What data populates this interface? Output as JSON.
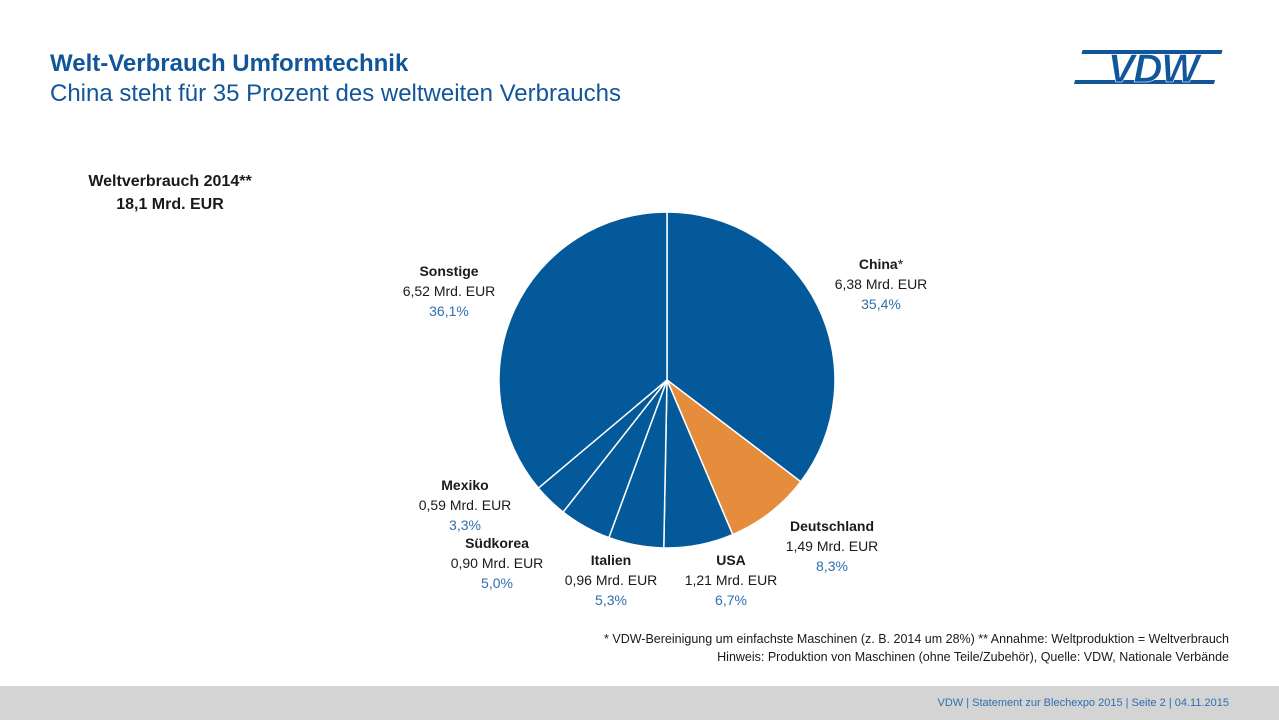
{
  "header": {
    "title": "Welt-Verbrauch Umformtechnik",
    "subtitle": "China steht für 35 Prozent des weltweiten Verbrauchs",
    "logo_text": "VDW"
  },
  "total": {
    "line1": "Weltverbrauch 2014**",
    "line2": "18,1 Mrd. EUR"
  },
  "chart_data": {
    "type": "pie",
    "start_angle_deg": 0,
    "direction": "clockwise",
    "slices": [
      {
        "name": "China",
        "name_suffix": "*",
        "value": 6.38,
        "value_label": "6,38 Mrd. EUR",
        "percent": 35.4,
        "percent_label": "35,4%",
        "color": "#04599a"
      },
      {
        "name": "Deutschland",
        "name_suffix": "",
        "value": 1.49,
        "value_label": "1,49 Mrd. EUR",
        "percent": 8.3,
        "percent_label": "8,3%",
        "color": "#e68c3d"
      },
      {
        "name": "USA",
        "name_suffix": "",
        "value": 1.21,
        "value_label": "1,21 Mrd. EUR",
        "percent": 6.7,
        "percent_label": "6,7%",
        "color": "#04599a"
      },
      {
        "name": "Italien",
        "name_suffix": "",
        "value": 0.96,
        "value_label": "0,96 Mrd. EUR",
        "percent": 5.3,
        "percent_label": "5,3%",
        "color": "#04599a"
      },
      {
        "name": "Südkorea",
        "name_suffix": "",
        "value": 0.9,
        "value_label": "0,90 Mrd. EUR",
        "percent": 5.0,
        "percent_label": "5,0%",
        "color": "#04599a"
      },
      {
        "name": "Mexiko",
        "name_suffix": "",
        "value": 0.59,
        "value_label": "0,59 Mrd. EUR",
        "percent": 3.3,
        "percent_label": "3,3%",
        "color": "#04599a"
      },
      {
        "name": "Sonstige",
        "name_suffix": "",
        "value": 6.52,
        "value_label": "6,52 Mrd. EUR",
        "percent": 36.1,
        "percent_label": "36,1%",
        "color": "#04599a"
      }
    ]
  },
  "notes": {
    "line1": "* VDW-Bereinigung um einfachste Maschinen (z. B. 2014 um 28%) ** Annahme: Weltproduktion = Weltverbrauch",
    "line2": "Hinweis: Produktion von Maschinen (ohne Teile/Zubehör), Quelle: VDW, Nationale Verbände"
  },
  "footer": {
    "text": "VDW  |  Statement zur Blechexpo 2015  |  Seite 2  |  04.11.2015"
  }
}
